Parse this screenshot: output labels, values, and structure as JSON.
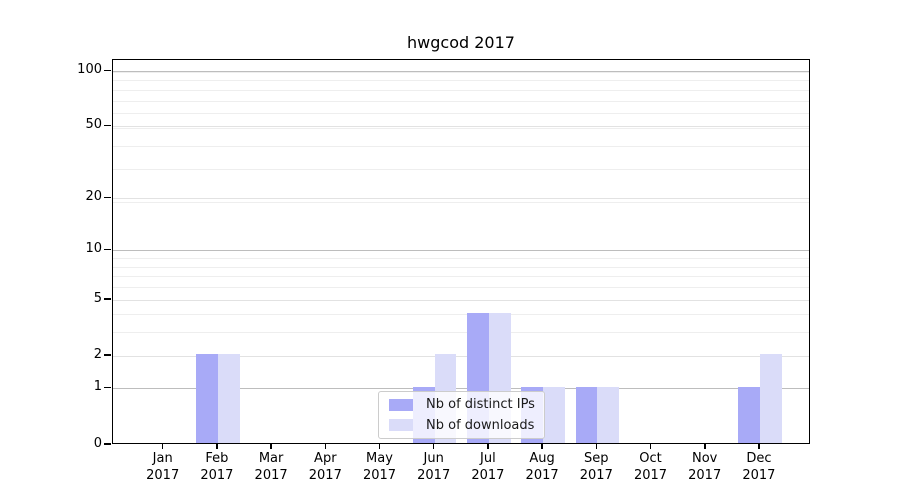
{
  "title": "hwgcod 2017",
  "chart_data": {
    "type": "bar",
    "title": "hwgcod 2017",
    "categories": [
      "Jan",
      "Feb",
      "Mar",
      "Apr",
      "May",
      "Jun",
      "Jul",
      "Aug",
      "Sep",
      "Oct",
      "Nov",
      "Dec"
    ],
    "x_year_suffix": "2017",
    "series": [
      {
        "name": "Nb of distinct IPs",
        "color": "#a8aaf7",
        "values": [
          0,
          2,
          0,
          0,
          0,
          1,
          4,
          1,
          1,
          0,
          0,
          1
        ]
      },
      {
        "name": "Nb of downloads",
        "color": "#dadcf9",
        "values": [
          0,
          2,
          0,
          0,
          0,
          2,
          4,
          1,
          1,
          0,
          0,
          2
        ]
      }
    ],
    "y_axis": {
      "scale": "log1p",
      "tick_values": [
        0,
        1,
        2,
        5,
        10,
        20,
        50,
        100
      ],
      "decade_ticks": [
        1,
        10,
        100
      ],
      "minor_grid_u": [
        4,
        5,
        7,
        8,
        9,
        10,
        20,
        30,
        40,
        50,
        60,
        70,
        80,
        90,
        100
      ],
      "ylim_bottom": 0
    },
    "grid": {
      "on": true,
      "decade_color": "#bdbdbd",
      "major_color": "#e2e2e2",
      "minor_color": "#eeeeee"
    },
    "legend": {
      "position": "lower center",
      "border_color": "#cccccc"
    },
    "axis_color": "#000000",
    "background_color": "#ffffff"
  }
}
